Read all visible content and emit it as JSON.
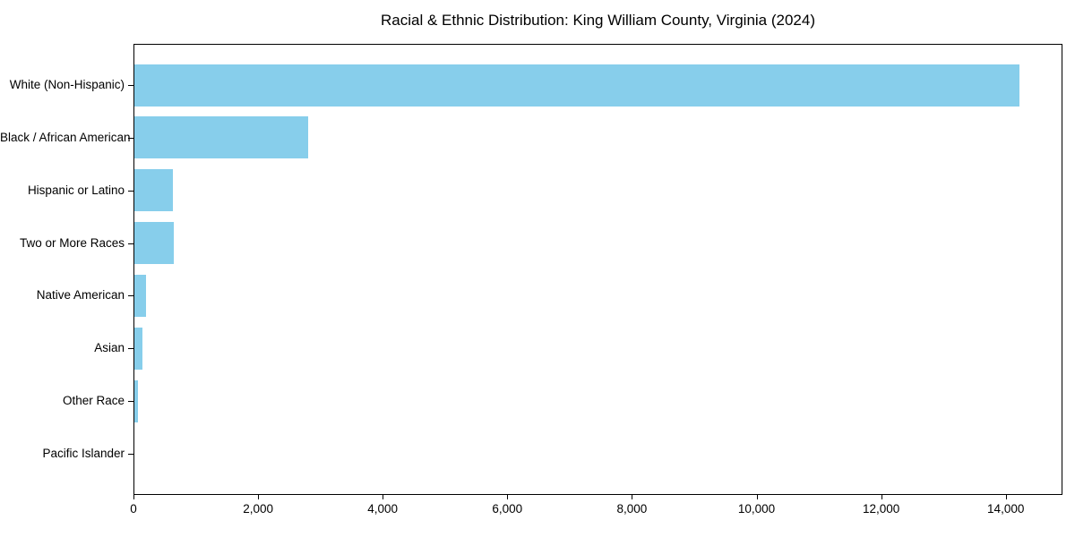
{
  "chart_data": {
    "type": "bar",
    "orientation": "horizontal",
    "title": "Racial & Ethnic Distribution: King William County, Virginia (2024)",
    "xlabel": "",
    "ylabel": "",
    "categories": [
      "White (Non-Hispanic)",
      "Black / African American",
      "Hispanic or Latino",
      "Two or More Races",
      "Native American",
      "Asian",
      "Other Race",
      "Pacific Islander"
    ],
    "values": [
      14200,
      2790,
      620,
      630,
      190,
      130,
      55,
      0
    ],
    "xlim": [
      0,
      14910
    ],
    "x_ticks": [
      0,
      2000,
      4000,
      6000,
      8000,
      10000,
      12000,
      14000
    ],
    "x_tick_labels": [
      "0",
      "2,000",
      "4,000",
      "6,000",
      "8,000",
      "10,000",
      "12,000",
      "14,000"
    ],
    "grid": false,
    "legend": null
  },
  "colors": {
    "bar": "#87CEEB",
    "axis": "#000000",
    "text": "#000000",
    "background": "#FFFFFF"
  }
}
